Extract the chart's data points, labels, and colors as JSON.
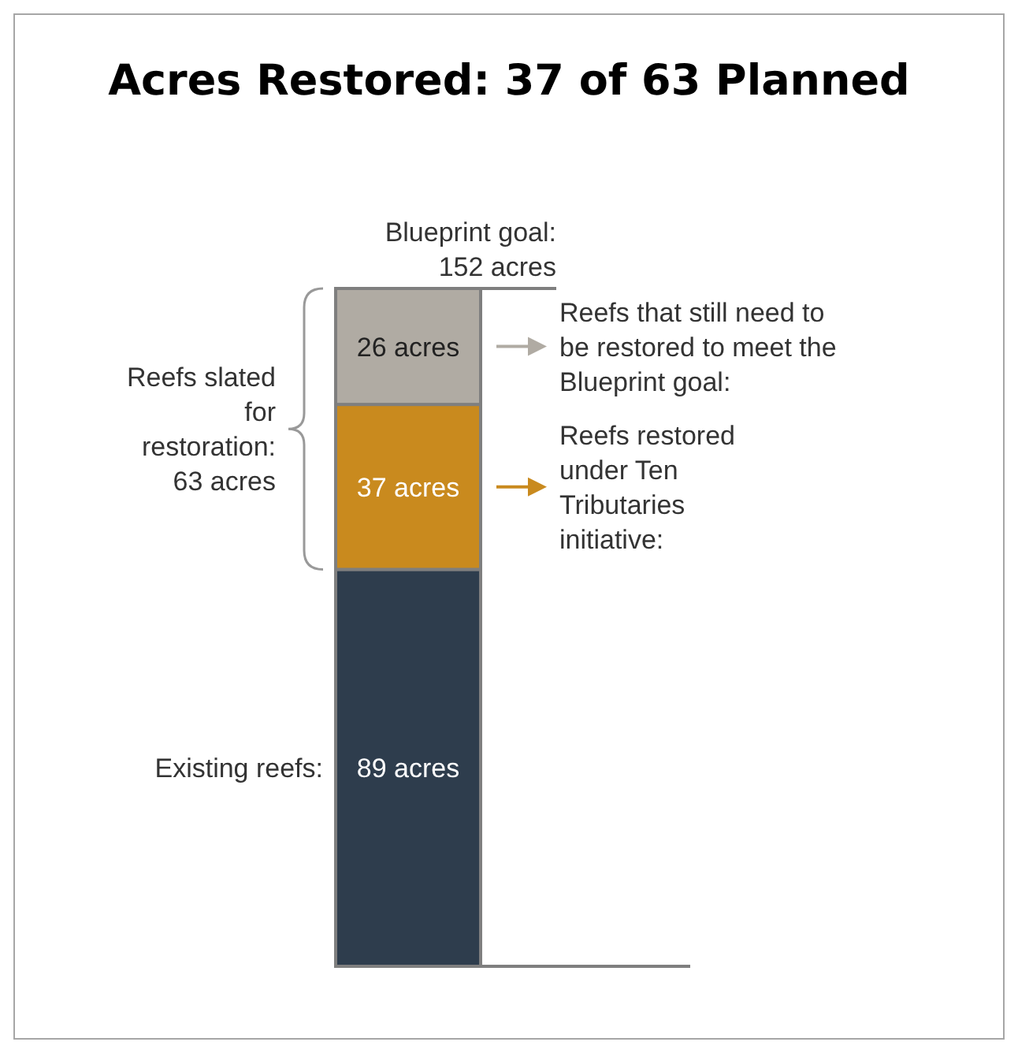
{
  "chart_data": {
    "type": "bar",
    "title": "Acres Restored: 37 of 63 Planned",
    "categories": [
      null
    ],
    "stacked": true,
    "series": [
      {
        "name": "Existing reefs:",
        "color": "#2e3d4d",
        "values": [
          89
        ],
        "value_labels": [
          "89 acres"
        ]
      },
      {
        "name": "Reefs restored under Ten Tributaries initiative:",
        "color": "#c98a1e",
        "values": [
          37
        ],
        "value_labels": [
          "37 acres"
        ]
      },
      {
        "name": "Reefs that still need to be restored to meet the Blueprint goal:",
        "color": "#b0aba3",
        "values": [
          26
        ],
        "value_labels": [
          "26 acres"
        ]
      }
    ],
    "legend": "right",
    "ref_lines": [
      {
        "axis": "y",
        "value": 152,
        "label": "Blueprint goal: 152 acres",
        "color": "#7f7f7f"
      }
    ],
    "annotations": [
      "Reefs slated for restoration: 63 acres"
    ]
  }
}
